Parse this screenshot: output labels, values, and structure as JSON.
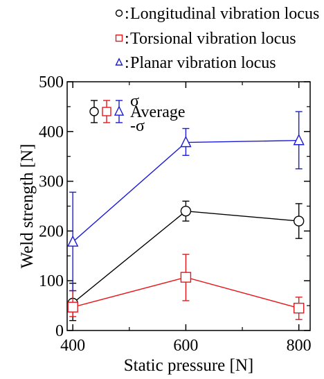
{
  "chart_data": {
    "type": "line",
    "xlabel": "Static pressure [N]",
    "ylabel": "Weld strength [N]",
    "x": [
      400,
      600,
      800
    ],
    "xlim": [
      390,
      820
    ],
    "ylim": [
      0,
      500
    ],
    "xticks": [
      400,
      600,
      800
    ],
    "yticks": [
      0,
      100,
      200,
      300,
      400,
      500
    ],
    "grid": false,
    "legend_position": "top",
    "series": [
      {
        "name": "Longitudinal vibration locus",
        "marker": "circle",
        "color": "#000000",
        "values": [
          55,
          240,
          220
        ],
        "error_upper": [
          95,
          260,
          255
        ],
        "error_lower": [
          20,
          220,
          185
        ]
      },
      {
        "name": "Torsional vibration locus",
        "marker": "square",
        "color": "#e8161b",
        "values": [
          47,
          107,
          45
        ],
        "error_upper": [
          80,
          153,
          67
        ],
        "error_lower": [
          28,
          60,
          22
        ]
      },
      {
        "name": "Planar vibration locus",
        "marker": "triangle",
        "color": "#1a1adb",
        "values": [
          178,
          378,
          382
        ],
        "error_upper": [
          278,
          406,
          440
        ],
        "error_lower": [
          80,
          352,
          325
        ]
      }
    ],
    "error_key": {
      "upper_label": "σ",
      "middle_label": "Average",
      "lower_label": "-σ"
    }
  }
}
